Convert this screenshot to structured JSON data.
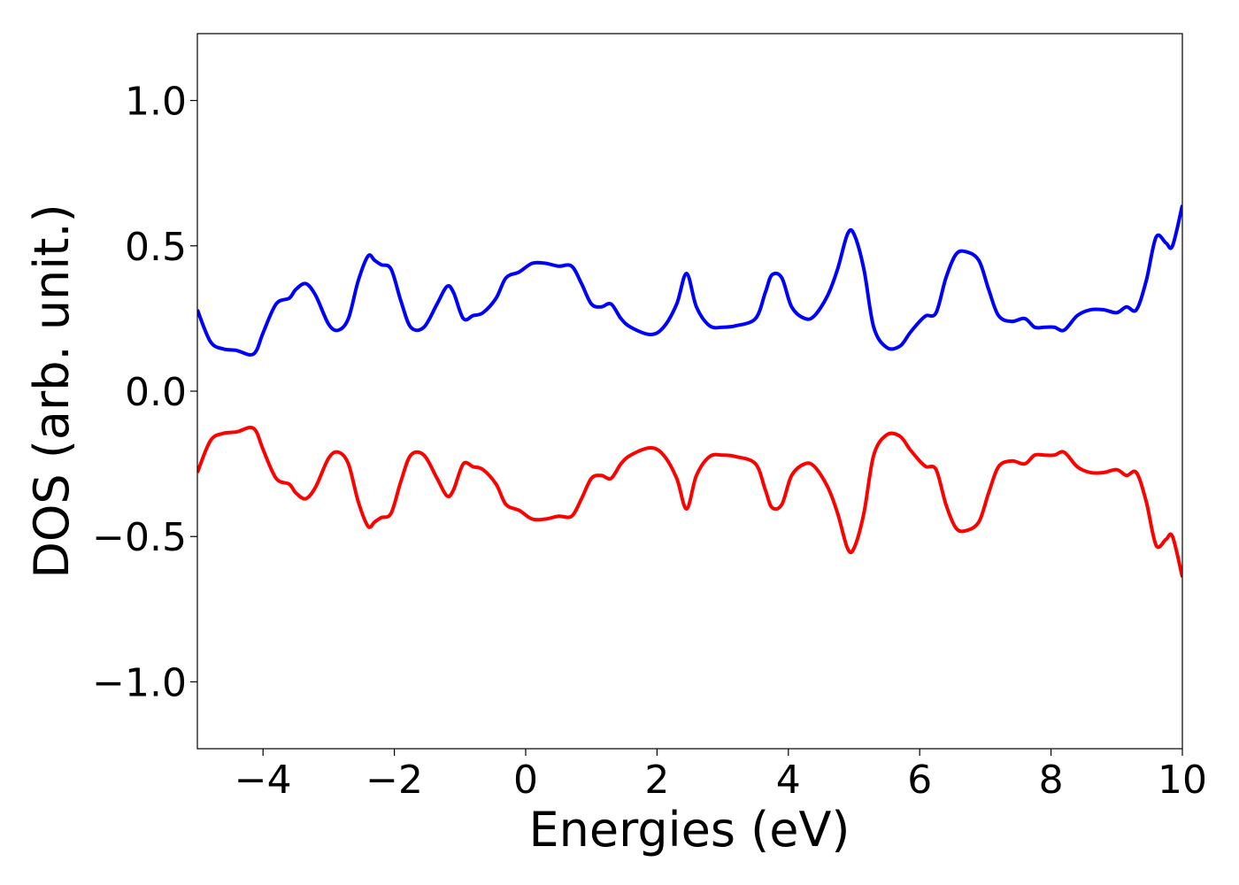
{
  "chart_data": {
    "type": "line",
    "title": "",
    "xlabel": "Energies (eV)",
    "ylabel": "DOS (arb. unit.)",
    "xlim": [
      -5,
      10
    ],
    "ylim": [
      -1.23,
      1.23
    ],
    "grid": false,
    "legend": "none",
    "xticks": [
      -4,
      -2,
      0,
      2,
      4,
      6,
      8,
      10
    ],
    "xtick_labels": [
      "−4",
      "−2",
      "0",
      "2",
      "4",
      "6",
      "8",
      "10"
    ],
    "yticks": [
      1.0,
      0.5,
      0.0,
      -0.5,
      -1.0
    ],
    "ytick_labels": [
      "1.0",
      "0.5",
      "0.0",
      "−0.5",
      "−1.0"
    ],
    "series": [
      {
        "color": "#0000ff",
        "x": [
          -5.0,
          -4.8,
          -4.6,
          -4.4,
          -4.2,
          -4.1,
          -4.0,
          -3.8,
          -3.6,
          -3.5,
          -3.35,
          -3.2,
          -3.0,
          -2.85,
          -2.7,
          -2.55,
          -2.4,
          -2.3,
          -2.2,
          -2.05,
          -1.9,
          -1.75,
          -1.55,
          -1.35,
          -1.2,
          -1.1,
          -0.95,
          -0.8,
          -0.65,
          -0.45,
          -0.3,
          -0.1,
          0.1,
          0.3,
          0.5,
          0.7,
          0.85,
          1.0,
          1.15,
          1.3,
          1.45,
          1.6,
          1.9,
          2.1,
          2.3,
          2.45,
          2.6,
          2.8,
          3.0,
          3.2,
          3.5,
          3.65,
          3.75,
          3.9,
          4.05,
          4.25,
          4.4,
          4.6,
          4.75,
          4.9,
          5.0,
          5.15,
          5.3,
          5.5,
          5.7,
          5.85,
          6.0,
          6.1,
          6.25,
          6.4,
          6.55,
          6.7,
          6.9,
          7.05,
          7.2,
          7.4,
          7.6,
          7.75,
          7.9,
          8.05,
          8.2,
          8.4,
          8.6,
          8.8,
          9.0,
          9.15,
          9.3,
          9.45,
          9.6,
          9.75,
          9.85,
          10.0
        ],
        "y": [
          0.28,
          0.17,
          0.145,
          0.14,
          0.125,
          0.14,
          0.2,
          0.3,
          0.32,
          0.35,
          0.37,
          0.33,
          0.23,
          0.21,
          0.25,
          0.38,
          0.465,
          0.45,
          0.435,
          0.42,
          0.31,
          0.22,
          0.22,
          0.3,
          0.36,
          0.34,
          0.25,
          0.26,
          0.27,
          0.32,
          0.39,
          0.41,
          0.44,
          0.44,
          0.43,
          0.43,
          0.37,
          0.3,
          0.29,
          0.3,
          0.25,
          0.22,
          0.195,
          0.22,
          0.3,
          0.405,
          0.29,
          0.225,
          0.22,
          0.225,
          0.25,
          0.34,
          0.4,
          0.39,
          0.29,
          0.25,
          0.26,
          0.33,
          0.42,
          0.54,
          0.54,
          0.42,
          0.22,
          0.15,
          0.155,
          0.2,
          0.24,
          0.26,
          0.27,
          0.39,
          0.47,
          0.48,
          0.45,
          0.35,
          0.26,
          0.24,
          0.25,
          0.22,
          0.22,
          0.22,
          0.21,
          0.26,
          0.28,
          0.28,
          0.27,
          0.29,
          0.28,
          0.38,
          0.53,
          0.51,
          0.5,
          0.64
        ]
      },
      {
        "color": "#ff0000",
        "x": [
          -5.0,
          -4.8,
          -4.6,
          -4.4,
          -4.2,
          -4.1,
          -4.0,
          -3.8,
          -3.6,
          -3.5,
          -3.35,
          -3.2,
          -3.0,
          -2.85,
          -2.7,
          -2.55,
          -2.4,
          -2.3,
          -2.2,
          -2.05,
          -1.9,
          -1.75,
          -1.55,
          -1.35,
          -1.2,
          -1.1,
          -0.95,
          -0.8,
          -0.65,
          -0.45,
          -0.3,
          -0.1,
          0.1,
          0.3,
          0.5,
          0.7,
          0.85,
          1.0,
          1.15,
          1.3,
          1.45,
          1.6,
          1.9,
          2.1,
          2.3,
          2.45,
          2.6,
          2.8,
          3.0,
          3.2,
          3.5,
          3.65,
          3.75,
          3.9,
          4.05,
          4.25,
          4.4,
          4.6,
          4.75,
          4.9,
          5.0,
          5.15,
          5.3,
          5.5,
          5.7,
          5.85,
          6.0,
          6.1,
          6.25,
          6.4,
          6.55,
          6.7,
          6.9,
          7.05,
          7.2,
          7.4,
          7.6,
          7.75,
          7.9,
          8.05,
          8.2,
          8.4,
          8.6,
          8.8,
          9.0,
          9.15,
          9.3,
          9.45,
          9.6,
          9.75,
          9.85,
          10.0
        ],
        "y": [
          -0.28,
          -0.17,
          -0.145,
          -0.14,
          -0.125,
          -0.14,
          -0.2,
          -0.3,
          -0.32,
          -0.35,
          -0.37,
          -0.33,
          -0.23,
          -0.21,
          -0.25,
          -0.38,
          -0.465,
          -0.45,
          -0.435,
          -0.42,
          -0.31,
          -0.22,
          -0.22,
          -0.3,
          -0.36,
          -0.34,
          -0.25,
          -0.26,
          -0.27,
          -0.32,
          -0.39,
          -0.41,
          -0.44,
          -0.44,
          -0.43,
          -0.43,
          -0.37,
          -0.3,
          -0.29,
          -0.3,
          -0.25,
          -0.22,
          -0.195,
          -0.22,
          -0.3,
          -0.405,
          -0.29,
          -0.225,
          -0.22,
          -0.225,
          -0.25,
          -0.34,
          -0.4,
          -0.39,
          -0.29,
          -0.25,
          -0.26,
          -0.33,
          -0.42,
          -0.54,
          -0.54,
          -0.42,
          -0.22,
          -0.15,
          -0.155,
          -0.2,
          -0.24,
          -0.26,
          -0.27,
          -0.39,
          -0.47,
          -0.48,
          -0.45,
          -0.35,
          -0.26,
          -0.24,
          -0.25,
          -0.22,
          -0.22,
          -0.22,
          -0.21,
          -0.26,
          -0.28,
          -0.28,
          -0.27,
          -0.29,
          -0.28,
          -0.38,
          -0.53,
          -0.51,
          -0.5,
          -0.64
        ]
      }
    ]
  }
}
